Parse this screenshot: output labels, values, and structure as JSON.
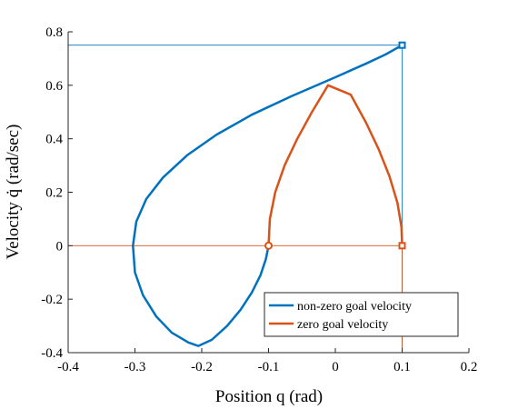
{
  "chart_data": {
    "type": "line",
    "xlabel": "Position q (rad)",
    "ylabel": "Velocity q̇ (rad/sec)",
    "xlim": [
      -0.4,
      0.2
    ],
    "ylim": [
      -0.4,
      0.8
    ],
    "x_ticks": [
      -0.4,
      -0.3,
      -0.2,
      -0.1,
      0,
      0.1,
      0.2
    ],
    "x_tick_labels": [
      "-0.4",
      "-0.3",
      "-0.2",
      "-0.1",
      "0",
      "0.1",
      "0.2"
    ],
    "y_ticks": [
      -0.4,
      -0.2,
      0,
      0.2,
      0.4,
      0.6,
      0.8
    ],
    "y_tick_labels": [
      "-0.4",
      "-0.2",
      "0",
      "0.2",
      "0.4",
      "0.6",
      "0.8"
    ],
    "grid": false,
    "legend_placement": "bottom-right",
    "series": [
      {
        "name": "non-zero goal velocity",
        "color": "#0072bd",
        "points": [
          [
            -0.1,
            0.0
          ],
          [
            -0.104,
            -0.05
          ],
          [
            -0.112,
            -0.11
          ],
          [
            -0.125,
            -0.175
          ],
          [
            -0.142,
            -0.24
          ],
          [
            -0.162,
            -0.3
          ],
          [
            -0.185,
            -0.352
          ],
          [
            -0.205,
            -0.375
          ],
          [
            -0.22,
            -0.362
          ],
          [
            -0.245,
            -0.325
          ],
          [
            -0.268,
            -0.265
          ],
          [
            -0.288,
            -0.185
          ],
          [
            -0.3,
            -0.1
          ],
          [
            -0.303,
            0.0
          ],
          [
            -0.298,
            0.09
          ],
          [
            -0.283,
            0.175
          ],
          [
            -0.258,
            0.255
          ],
          [
            -0.222,
            0.338
          ],
          [
            -0.178,
            0.415
          ],
          [
            -0.125,
            0.49
          ],
          [
            -0.065,
            0.56
          ],
          [
            0.0,
            0.63
          ],
          [
            0.045,
            0.68
          ],
          [
            0.075,
            0.715
          ],
          [
            0.1,
            0.75
          ]
        ],
        "start_marker": null,
        "end_marker": {
          "x": 0.1,
          "y": 0.75,
          "shape": "square"
        }
      },
      {
        "name": "zero goal velocity",
        "color": "#d95319",
        "points": [
          [
            -0.1,
            0.0
          ],
          [
            -0.098,
            0.1
          ],
          [
            -0.09,
            0.2
          ],
          [
            -0.076,
            0.3
          ],
          [
            -0.057,
            0.4
          ],
          [
            -0.035,
            0.5
          ],
          [
            -0.011,
            0.6
          ],
          [
            0.023,
            0.565
          ],
          [
            0.046,
            0.46
          ],
          [
            0.065,
            0.36
          ],
          [
            0.081,
            0.26
          ],
          [
            0.093,
            0.16
          ],
          [
            0.099,
            0.07
          ],
          [
            0.1,
            0.0
          ]
        ],
        "start_marker": {
          "x": -0.1,
          "y": 0.0,
          "shape": "circle"
        },
        "end_marker": {
          "x": 0.1,
          "y": 0.0,
          "shape": "square"
        }
      }
    ],
    "reference_lines": [
      {
        "color": "#0072bd",
        "points": [
          [
            -0.4,
            0.75
          ],
          [
            0.1,
            0.75
          ],
          [
            0.1,
            -0.4
          ]
        ]
      },
      {
        "color": "#d95319",
        "points": [
          [
            -0.4,
            0.0
          ],
          [
            0.1,
            0.0
          ],
          [
            0.1,
            -0.4
          ]
        ]
      }
    ]
  }
}
